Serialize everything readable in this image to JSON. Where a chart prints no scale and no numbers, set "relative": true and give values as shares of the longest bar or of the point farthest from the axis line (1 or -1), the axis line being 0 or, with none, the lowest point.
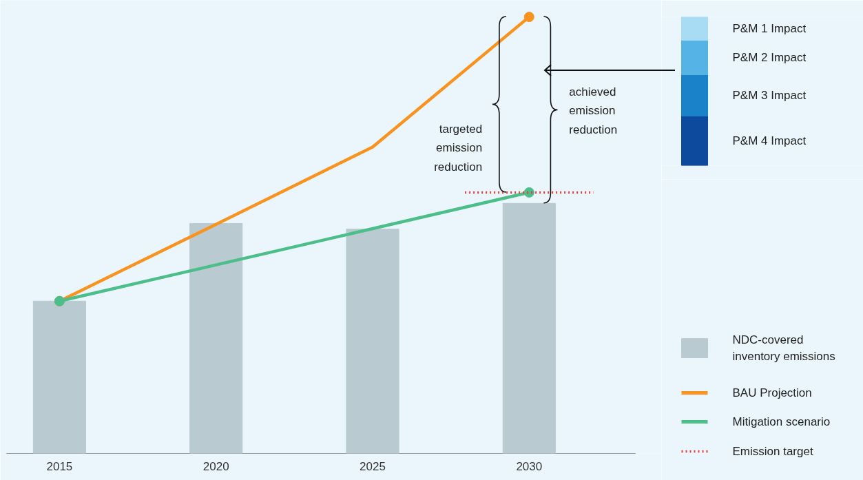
{
  "chart_data": [
    {
      "type": "bar",
      "relative": true,
      "categories": [
        "2015",
        "2020",
        "2025",
        "2030"
      ],
      "grid": false,
      "legend": "right",
      "series": [
        {
          "name": "NDC-covered inventory emissions",
          "color": "#b9cad1",
          "values": [
            0.349,
            0.527,
            0.514,
            0.573
          ]
        },
        {
          "type": "line",
          "name": "BAU Projection",
          "color": "#f7931e",
          "values": [
            0.349,
            0.525,
            0.702,
            1.0
          ],
          "marker": "circle"
        },
        {
          "type": "line",
          "name": "Mitigation scenario",
          "color": "#4cbe8a",
          "values": [
            0.349,
            0.432,
            0.515,
            0.598
          ],
          "marker": "circle"
        }
      ],
      "ref_lines": [
        {
          "axis": "y",
          "value": 0.598,
          "label": "Emission target",
          "color": "#e8403a",
          "line_style": "dotted"
        }
      ],
      "annotations": [
        "targeted emission reduction",
        "achieved emission reduction"
      ]
    },
    {
      "type": "bar",
      "stacked": true,
      "relative": true,
      "categories": [
        null
      ],
      "series": [
        {
          "name": "P&M 4 Impact",
          "color": "#0d4a9e",
          "values": [
            0.333
          ]
        },
        {
          "name": "P&M 3 Impact",
          "color": "#1a82c8",
          "values": [
            0.278
          ]
        },
        {
          "name": "P&M 2 Impact",
          "color": "#55b4e5",
          "values": [
            0.232
          ]
        },
        {
          "name": "P&M 1 Impact",
          "color": "#a8dcf5",
          "values": [
            0.157
          ]
        }
      ]
    }
  ]
}
